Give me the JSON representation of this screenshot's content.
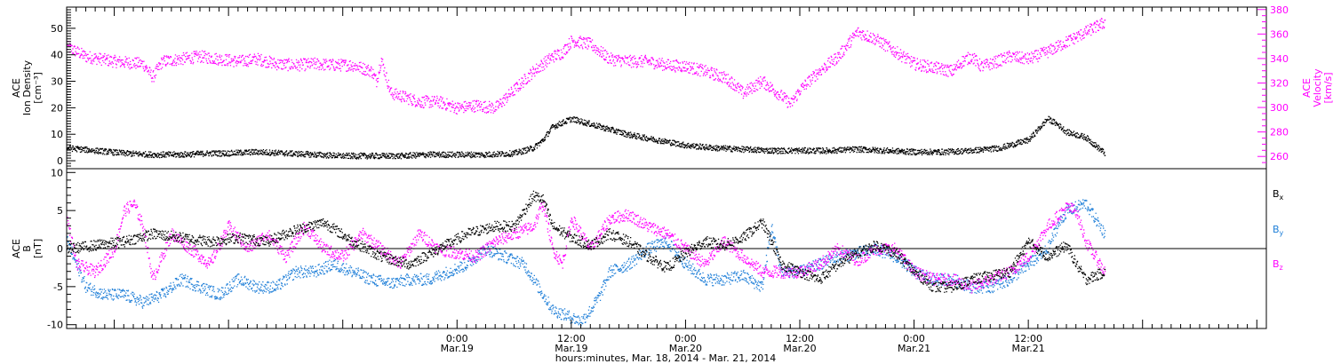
{
  "chart_data": [
    {
      "type": "scatter",
      "panel": "top",
      "left_axis": {
        "label_lines": [
          "ACE",
          "Ion Density",
          "[cm⁻³]"
        ],
        "ylim": [
          -3,
          58
        ],
        "ticks": [
          0,
          10,
          20,
          30,
          40,
          50
        ],
        "tick_labels": [
          "0",
          "10",
          "20",
          "30",
          "40",
          "50"
        ],
        "color": "#000000"
      },
      "right_axis": {
        "label_lines": [
          "ACE",
          "Velocity",
          "[km/s]"
        ],
        "ylim": [
          250,
          382
        ],
        "ticks": [
          260,
          280,
          300,
          320,
          340,
          360,
          380
        ],
        "tick_labels": [
          "260",
          "280",
          "300",
          "320",
          "340",
          "360",
          "380"
        ],
        "color": "#ff00ff"
      },
      "series": [
        {
          "axis": "left",
          "color": "#000000",
          "x": [
            -17,
            -14,
            -11,
            -8,
            -5,
            -2,
            0,
            3,
            6,
            9,
            12,
            15,
            18,
            21,
            24,
            27,
            30,
            32,
            33,
            34,
            36,
            39,
            42,
            45,
            48,
            51,
            54,
            57,
            60,
            63,
            66,
            69,
            72,
            75,
            78,
            81,
            84,
            86,
            87,
            88,
            90,
            92
          ],
          "y": [
            5,
            4,
            3,
            2.5,
            2.5,
            3,
            3,
            3.5,
            3,
            2.5,
            2,
            2,
            2,
            2.5,
            2.5,
            2.5,
            3,
            5,
            8,
            13,
            16,
            13,
            10,
            8,
            6,
            5,
            4.5,
            4,
            4,
            4,
            4.5,
            4,
            3.5,
            3.5,
            4,
            5,
            8,
            16,
            14,
            11,
            9,
            3
          ]
        },
        {
          "axis": "right",
          "color": "#ff00ff",
          "x": [
            -17,
            -15,
            -12,
            -9,
            -8,
            -7,
            -5,
            -3,
            -1,
            1,
            3,
            5,
            7,
            9,
            11,
            13,
            15,
            15.5,
            16,
            17,
            18,
            20,
            22,
            24,
            26,
            28,
            30,
            32,
            34,
            35,
            36,
            38,
            40,
            42,
            44,
            46,
            48,
            50,
            52,
            53,
            54,
            55,
            56,
            57,
            58,
            59,
            60,
            62,
            64,
            66,
            68,
            70,
            72,
            74,
            76,
            77,
            78,
            79,
            80,
            82,
            84,
            86,
            88,
            90,
            92
          ],
          "y": [
            350,
            342,
            338,
            336,
            325,
            338,
            340,
            342,
            340,
            338,
            340,
            336,
            335,
            336,
            335,
            335,
            330,
            322,
            340,
            312,
            310,
            305,
            305,
            300,
            302,
            300,
            315,
            330,
            342,
            345,
            355,
            352,
            340,
            338,
            338,
            335,
            334,
            330,
            325,
            320,
            312,
            317,
            322,
            316,
            310,
            303,
            315,
            330,
            342,
            362,
            356,
            346,
            336,
            333,
            330,
            338,
            342,
            334,
            336,
            342,
            340,
            346,
            354,
            362,
            370
          ]
        }
      ]
    },
    {
      "type": "scatter",
      "panel": "bottom",
      "left_axis": {
        "label_lines": [
          "ACE",
          "B",
          "[nT]"
        ],
        "ylim": [
          -10.5,
          10.5
        ],
        "ticks": [
          -10,
          -5,
          0,
          5,
          10
        ],
        "tick_labels": [
          "-10",
          "-5",
          "0",
          "5",
          "10"
        ]
      },
      "zero_line": true,
      "series": [
        {
          "name": "Bx",
          "color": "#000000",
          "x": [
            -17,
            -14,
            -11,
            -8,
            -5,
            -2,
            1,
            4,
            7,
            10,
            13,
            16,
            19,
            22,
            25,
            28,
            30,
            31,
            32,
            33,
            34,
            36,
            38,
            40,
            42,
            44,
            46,
            48,
            50,
            52,
            54,
            56,
            57,
            58,
            60,
            62,
            64,
            66,
            68,
            70,
            72,
            74,
            76,
            78,
            80,
            82,
            84,
            86,
            88,
            89,
            90,
            92
          ],
          "y": [
            0,
            0.5,
            1,
            2,
            1.5,
            1,
            1.5,
            1,
            2.5,
            3.5,
            1,
            -1,
            -2,
            0,
            2,
            3,
            3,
            5,
            7,
            6.5,
            3,
            1.5,
            0.5,
            2,
            1,
            -1,
            -2.5,
            -0.5,
            1,
            0.5,
            1.5,
            3.5,
            1,
            -2,
            -3,
            -4,
            -2,
            -0.5,
            0.5,
            -0.5,
            -3,
            -5,
            -5,
            -4,
            -3.5,
            -3,
            1,
            -1,
            0.5,
            -2,
            -4,
            -3
          ]
        },
        {
          "name": "By",
          "color": "#1f7fd8",
          "x": [
            -17,
            -15,
            -13,
            -11,
            -9,
            -7,
            -5,
            -3,
            -1,
            1,
            3,
            5,
            7,
            9,
            11,
            13,
            15,
            17,
            19,
            21,
            23,
            25,
            27,
            29,
            31,
            32,
            33,
            34,
            35,
            36,
            37,
            38,
            39,
            40,
            42,
            43,
            44,
            46,
            48,
            50,
            52,
            54,
            56,
            57,
            58,
            60,
            62,
            64,
            66,
            68,
            70,
            72,
            74,
            76,
            78,
            80,
            82,
            84,
            86,
            87,
            88,
            90,
            92
          ],
          "y": [
            1,
            -5,
            -6,
            -6,
            -7,
            -6,
            -4,
            -5,
            -6,
            -4,
            -5,
            -5,
            -3,
            -3,
            -2,
            -3,
            -4,
            -4.5,
            -4,
            -4,
            -3,
            -2,
            0,
            -1,
            -2,
            -4,
            -6,
            -8,
            -8.5,
            -9,
            -9.5,
            -8,
            -6,
            -3,
            -2,
            -1,
            0,
            1,
            -2,
            -4,
            -4,
            -3.5,
            -5,
            3,
            -3,
            -3,
            -2,
            -1,
            -0.5,
            0,
            -1,
            -3,
            -4,
            -4,
            -5,
            -5,
            -4,
            -2,
            0,
            3,
            5,
            6,
            2
          ]
        },
        {
          "name": "Bz",
          "color": "#ff00ff",
          "x": [
            -17,
            -16,
            -14,
            -12,
            -11,
            -10,
            -9,
            -8,
            -6,
            -4,
            -2,
            0,
            2,
            4,
            6,
            8,
            10,
            12,
            14,
            16,
            18,
            20,
            22,
            24,
            26,
            28,
            30,
            32,
            33,
            34,
            35,
            36,
            38,
            40,
            42,
            44,
            46,
            48,
            50,
            52,
            54,
            56,
            58,
            60,
            62,
            64,
            66,
            68,
            70,
            72,
            74,
            76,
            78,
            80,
            82,
            84,
            86,
            88,
            89,
            90,
            92
          ],
          "y": [
            4,
            -2,
            -3,
            0,
            5,
            6,
            3,
            -4,
            2,
            0,
            -2,
            3,
            0,
            2,
            -1,
            3,
            0,
            -1,
            2,
            0,
            -2,
            2,
            0,
            -0.5,
            -1,
            1,
            2,
            3,
            6,
            0,
            -2,
            4,
            0,
            4,
            4.5,
            3,
            2,
            0,
            -2,
            1,
            -1,
            -3,
            -3,
            -3,
            -2,
            0,
            -1.5,
            0,
            0,
            -3,
            -4,
            -4,
            -5,
            -4,
            -3,
            -1,
            3,
            5.5,
            5,
            1,
            -3
          ]
        }
      ],
      "legend": [
        {
          "base": "B",
          "sub": "x",
          "color": "#000000"
        },
        {
          "base": "B",
          "sub": "y",
          "color": "#1f7fd8"
        },
        {
          "base": "B",
          "sub": "z",
          "color": "#ff00ff"
        }
      ]
    }
  ],
  "x_axis": {
    "unit": "hours since 2014-03-18 00:00 UT",
    "xlim": [
      -17,
      109
    ],
    "major_ticks": [
      {
        "x": 24,
        "line1": "0:00",
        "line2": "Mar.19"
      },
      {
        "x": 36,
        "line1": "12:00",
        "line2": "Mar.19"
      },
      {
        "x": 48,
        "line1": "0:00",
        "line2": "Mar.20"
      },
      {
        "x": 60,
        "line1": "12:00",
        "line2": "Mar.20"
      },
      {
        "x": 72,
        "line1": "0:00",
        "line2": "Mar.21"
      },
      {
        "x": 84,
        "line1": "12:00",
        "line2": "Mar.21"
      }
    ],
    "title": "hours:minutes, Mar. 18, 2014 - Mar. 21, 2014"
  }
}
